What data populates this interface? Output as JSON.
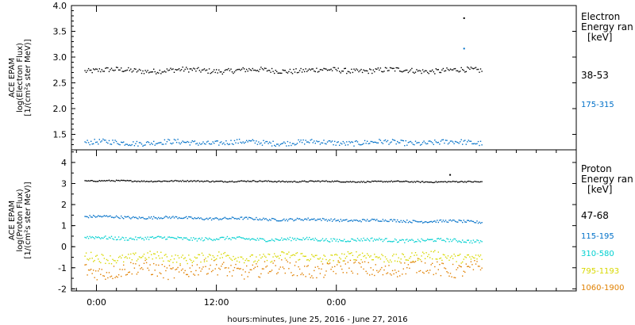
{
  "chart_data": {
    "type": "scatter",
    "xlabel": "hours:minutes, June 25, 2016 - June 27, 2016",
    "x_ticks": [
      "0:00",
      "12:00",
      "0:00"
    ],
    "panels": [
      {
        "id": "electron",
        "ylabel_lines": [
          "ACE EPAM",
          "log(Electron Flux)",
          "[1/(cm²s ster MeV)]"
        ],
        "ylim": [
          1.2,
          4.0
        ],
        "y_ticks": [
          "1.5",
          "2.0",
          "2.5",
          "3.0",
          "3.5",
          "4.0"
        ],
        "legend_title": [
          "Electron",
          "Energy ran",
          "[keV]"
        ],
        "series": [
          {
            "name": "38-53",
            "color": "#000000",
            "level": 2.75,
            "spread": 0.05,
            "outliers": [
              {
                "x": 36.7,
                "y": 3.77
              }
            ]
          },
          {
            "name": "175-315",
            "color": "#0070c8",
            "level": 1.35,
            "spread": 0.05,
            "outliers": [
              {
                "x": 36.7,
                "y": 3.18
              }
            ]
          }
        ]
      },
      {
        "id": "proton",
        "ylabel_lines": [
          "ACE EPAM",
          "log(Proton Flux)",
          "[1/(cm²s ster MeV)]"
        ],
        "ylim": [
          -2.1,
          4.6
        ],
        "y_ticks": [
          "-2",
          "-1",
          "0",
          "1",
          "2",
          "3",
          "4"
        ],
        "legend_title": [
          "Proton",
          "Energy ran",
          "[keV]"
        ],
        "series": [
          {
            "name": "47-68",
            "color": "#000000",
            "level_start": 3.15,
            "level_end": 3.1,
            "spread": 0.03,
            "outliers": [
              {
                "x": 35.3,
                "y": 3.45
              }
            ]
          },
          {
            "name": "115-195",
            "color": "#0070c8",
            "level_start": 1.45,
            "level_end": 1.2,
            "spread": 0.06,
            "outliers": []
          },
          {
            "name": "310-580",
            "color": "#00d0d0",
            "level_start": 0.45,
            "level_end": 0.3,
            "spread": 0.08,
            "outliers": []
          },
          {
            "name": "795-1193",
            "color": "#d8d800",
            "level_start": -0.5,
            "level_end": -0.45,
            "spread": 0.22,
            "outliers": []
          },
          {
            "name": "1060-1900",
            "color": "#e08000",
            "level_start": -1.1,
            "level_end": -1.0,
            "spread": 0.35,
            "outliers": []
          }
        ]
      }
    ],
    "x_range_hours": [
      -2.5,
      48
    ],
    "data_x_range_hours": [
      -1.2,
      38.5
    ]
  }
}
